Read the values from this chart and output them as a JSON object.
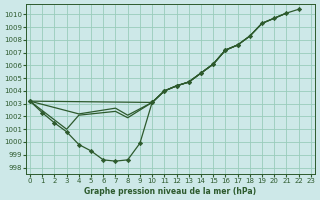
{
  "background_color": "#cde8e8",
  "grid_color": "#99ccbb",
  "line_color": "#2d5a2d",
  "marker_color": "#2d5a2d",
  "xlabel": "Graphe pression niveau de la mer (hPa)",
  "ylim": [
    997.5,
    1010.8
  ],
  "xlim": [
    -0.3,
    23.3
  ],
  "yticks": [
    998,
    999,
    1000,
    1001,
    1002,
    1003,
    1004,
    1005,
    1006,
    1007,
    1008,
    1009,
    1010
  ],
  "xticks": [
    0,
    1,
    2,
    3,
    4,
    5,
    6,
    7,
    8,
    9,
    10,
    11,
    12,
    13,
    14,
    15,
    16,
    17,
    18,
    19,
    20,
    21,
    22,
    23
  ],
  "series": [
    {
      "x": [
        0,
        1,
        2,
        3,
        4,
        5,
        6,
        7,
        8,
        9,
        10,
        11,
        12,
        13,
        14,
        15,
        16,
        17
      ],
      "y": [
        1003.2,
        1002.3,
        1001.5,
        1000.8,
        999.8,
        999.3,
        998.6,
        998.5,
        998.6,
        999.9,
        1003.1,
        1004.0,
        1004.4,
        1004.7,
        1005.4,
        1006.1,
        1007.2,
        1007.6
      ],
      "has_markers": true
    },
    {
      "x": [
        0,
        3,
        4,
        5,
        6,
        7,
        8,
        10,
        11,
        12,
        13,
        14,
        15,
        16,
        17,
        18,
        19,
        20,
        21
      ],
      "y": [
        1003.2,
        1001.0,
        1002.1,
        1002.2,
        1002.3,
        1002.4,
        1001.9,
        1003.1,
        1004.0,
        1004.4,
        1004.7,
        1005.4,
        1006.1,
        1007.2,
        1007.6,
        1008.3,
        1009.3,
        1009.7,
        1010.1
      ],
      "has_markers": false
    },
    {
      "x": [
        0,
        4,
        5,
        6,
        7,
        8,
        10,
        11,
        12,
        13,
        14,
        15,
        16,
        17,
        18,
        19,
        20,
        21
      ],
      "y": [
        1003.2,
        1002.2,
        1002.35,
        1002.5,
        1002.65,
        1002.1,
        1003.1,
        1004.0,
        1004.4,
        1004.7,
        1005.4,
        1006.1,
        1007.2,
        1007.6,
        1008.3,
        1009.3,
        1009.7,
        1010.1
      ],
      "has_markers": false
    },
    {
      "x": [
        0,
        10,
        11,
        12,
        13,
        14,
        15,
        16,
        17,
        18,
        19,
        20,
        21,
        22
      ],
      "y": [
        1003.2,
        1003.1,
        1004.0,
        1004.4,
        1004.7,
        1005.4,
        1006.1,
        1007.2,
        1007.6,
        1008.3,
        1009.3,
        1009.7,
        1010.1,
        1010.4
      ],
      "has_markers": true
    }
  ]
}
